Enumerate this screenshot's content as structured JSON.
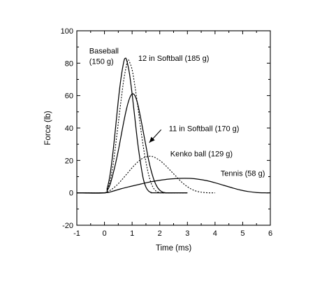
{
  "chart_data": {
    "type": "line",
    "xlabel": "Time (ms)",
    "ylabel": "Force (lb)",
    "xlim": [
      -1,
      6
    ],
    "ylim": [
      -20,
      100
    ],
    "xticks": [
      -1,
      0,
      1,
      2,
      3,
      4,
      5,
      6
    ],
    "yticks": [
      -20,
      0,
      20,
      40,
      60,
      80,
      100
    ],
    "grid": false,
    "series": [
      {
        "name": "Baseball (150 g)",
        "style": "solid",
        "x": [
          -1,
          0,
          0.1,
          0.2,
          0.3,
          0.4,
          0.5,
          0.6,
          0.7,
          0.75,
          0.8,
          0.9,
          1.0,
          1.1,
          1.2,
          1.3,
          1.4,
          1.5,
          1.6,
          1.7,
          1.8,
          3.0
        ],
        "y": [
          0,
          0,
          3,
          11,
          24,
          40,
          57,
          71,
          81,
          83,
          82,
          74,
          61,
          46,
          31,
          19,
          9,
          3.5,
          1,
          0.2,
          0,
          0
        ]
      },
      {
        "name": "12 in Softball (185 g)",
        "style": "dotted",
        "x": [
          -1,
          0,
          0.1,
          0.2,
          0.3,
          0.4,
          0.5,
          0.6,
          0.7,
          0.8,
          0.85,
          0.9,
          1.0,
          1.1,
          1.2,
          1.3,
          1.4,
          1.5,
          1.6,
          1.7,
          1.8,
          1.9,
          2.0,
          2.1,
          3.0
        ],
        "y": [
          0,
          0,
          2,
          7,
          16,
          29,
          43,
          57,
          70,
          79,
          82,
          81,
          76,
          66,
          54,
          41,
          29,
          19,
          11,
          5.5,
          2.2,
          0.7,
          0.2,
          0,
          0
        ]
      },
      {
        "name": "11 in Softball (170 g)",
        "style": "solid",
        "x": [
          -1,
          0,
          0.1,
          0.2,
          0.3,
          0.4,
          0.5,
          0.6,
          0.7,
          0.8,
          0.9,
          1.0,
          1.1,
          1.2,
          1.3,
          1.4,
          1.5,
          1.6,
          1.7,
          1.8,
          1.9,
          2.0,
          2.1,
          2.2,
          2.3,
          3.0
        ],
        "y": [
          0,
          0,
          1.5,
          5,
          11,
          18,
          26,
          35,
          44,
          52,
          58,
          61,
          60,
          55,
          47,
          38,
          29,
          20,
          13,
          7.5,
          3.8,
          1.6,
          0.5,
          0.1,
          0,
          0
        ]
      },
      {
        "name": "Kenko ball (129 g)",
        "style": "dotted",
        "x": [
          -1,
          0,
          0.2,
          0.4,
          0.6,
          0.8,
          1.0,
          1.2,
          1.4,
          1.6,
          1.7,
          1.8,
          2.0,
          2.2,
          2.4,
          2.6,
          2.8,
          3.0,
          3.2,
          3.4,
          3.6,
          3.8,
          4.0
        ],
        "y": [
          0,
          0,
          1.5,
          4,
          7.5,
          11.5,
          15.5,
          19,
          21.5,
          22.5,
          22.5,
          22,
          20,
          17,
          13.5,
          10,
          6.5,
          3.8,
          1.8,
          0.7,
          0.2,
          0,
          0
        ]
      },
      {
        "name": "Tennis (58 g)",
        "style": "solid",
        "x": [
          -1,
          0,
          0.3,
          0.6,
          0.9,
          1.2,
          1.5,
          1.8,
          2.1,
          2.4,
          2.7,
          2.9,
          3.1,
          3.4,
          3.7,
          4.0,
          4.3,
          4.6,
          4.9,
          5.2,
          5.5,
          5.8,
          6.0
        ],
        "y": [
          0,
          0,
          1,
          2.5,
          3.8,
          5,
          6.2,
          7.2,
          8,
          8.6,
          8.9,
          9,
          8.9,
          8.4,
          7.5,
          6.2,
          4.7,
          3.2,
          1.8,
          0.8,
          0.2,
          0,
          0
        ]
      }
    ],
    "annotations": [
      {
        "text": "Baseball",
        "x": -0.55,
        "y": 86
      },
      {
        "text": "(150 g)",
        "x": -0.55,
        "y": 79.5
      },
      {
        "text": "12 in Softball (185 g)",
        "x": 1.22,
        "y": 81.5
      },
      {
        "text": "11 in Softball (170 g)",
        "x": 2.33,
        "y": 38
      },
      {
        "text": "Kenko ball (129 g)",
        "x": 2.38,
        "y": 22.5
      },
      {
        "text": "Tennis (58 g)",
        "x": 4.2,
        "y": 10.5
      }
    ],
    "arrow": {
      "from": [
        2.05,
        39
      ],
      "to": [
        1.62,
        31
      ]
    }
  }
}
